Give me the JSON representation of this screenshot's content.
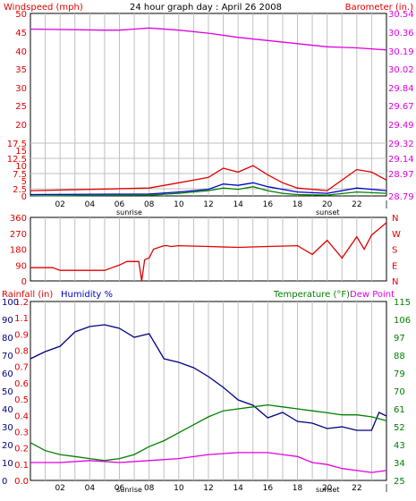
{
  "colors": {
    "red": "#e00000",
    "blue": "#0000c8",
    "green": "#008000",
    "magenta": "#e000e0",
    "navy": "#000080",
    "darkgreen": "#008000",
    "grid": "#c0c0c0",
    "frame": "#000000"
  },
  "chart_data": [
    {
      "type": "line",
      "title": "24 hour graph day : April 26 2008",
      "left_label": "Windspeed (mph)",
      "right_label": "Barometer (in.)",
      "x_ticks": [
        "02",
        "04",
        "06",
        "08",
        "10",
        "12",
        "14",
        "16",
        "18",
        "20",
        "22",
        "|"
      ],
      "x_annotations": [
        "sunrise",
        "sunset"
      ],
      "y_left_ticks": [
        "50",
        "45",
        "40",
        "35",
        "30",
        "25",
        "20",
        "17.5",
        "15",
        "12.5",
        "10",
        "7.5",
        "5",
        "2.5",
        "0"
      ],
      "y_right_ticks": [
        "30.54",
        "30.36",
        "30.19",
        "30.02",
        "29.84",
        "29.67",
        "29.49",
        "29.32",
        "29.14",
        "28.97",
        "28.79"
      ],
      "series": [
        {
          "name": "Barometer",
          "color": "magenta",
          "x": [
            0,
            5,
            6,
            7,
            8,
            10,
            12,
            14,
            16,
            18,
            20,
            22,
            24
          ],
          "y": [
            30.39,
            30.38,
            30.38,
            30.39,
            30.4,
            30.38,
            30.35,
            30.31,
            30.28,
            30.25,
            30.22,
            30.21,
            30.19
          ]
        },
        {
          "name": "Windspeed average",
          "color": "blue",
          "x": [
            0,
            8,
            10,
            12,
            13,
            14,
            15,
            16,
            17,
            18,
            20,
            22,
            23,
            24
          ],
          "y": [
            0.5,
            0.7,
            1.5,
            2.5,
            4.5,
            4.0,
            5.0,
            3.5,
            2.5,
            1.5,
            1.0,
            3.0,
            2.5,
            2.0
          ]
        },
        {
          "name": "Windspeed gust",
          "color": "red",
          "x": [
            0,
            8,
            10,
            12,
            13,
            14,
            15,
            16,
            17,
            18,
            20,
            22,
            23,
            24
          ],
          "y": [
            2.0,
            3.0,
            5.0,
            7.0,
            10.5,
            9.0,
            11.5,
            8.0,
            5.0,
            3.0,
            2.0,
            10.0,
            9.0,
            6.0
          ]
        },
        {
          "name": "Windspeed",
          "color": "green",
          "x": [
            0,
            8,
            10,
            12,
            13,
            14,
            15,
            16,
            17,
            18,
            20,
            22,
            24
          ],
          "y": [
            0.0,
            0.3,
            1.0,
            2.0,
            3.0,
            2.5,
            3.5,
            2.0,
            1.0,
            0.5,
            0.3,
            1.5,
            1.0
          ]
        }
      ]
    },
    {
      "type": "line",
      "y_left_ticks": [
        "360",
        "270",
        "180",
        "90",
        "0"
      ],
      "y_right_ticks": [
        "N",
        "W",
        "S",
        "E",
        "N"
      ],
      "series": [
        {
          "name": "Wind direction",
          "color": "red",
          "x": [
            0,
            1.5,
            2,
            5,
            5.5,
            6,
            6.5,
            7.3,
            7.5,
            7.7,
            8,
            8.3,
            9,
            9.2,
            9.5,
            10,
            12,
            14,
            16,
            18,
            19,
            20,
            21,
            22,
            22.5,
            23,
            24
          ],
          "y": [
            75,
            75,
            60,
            60,
            75,
            90,
            110,
            110,
            0,
            120,
            130,
            180,
            200,
            200,
            195,
            200,
            195,
            190,
            195,
            200,
            150,
            230,
            130,
            250,
            180,
            260,
            330
          ]
        }
      ]
    },
    {
      "type": "line",
      "left_label_1": "Rainfall (in)",
      "left_label_2": "Humidity %",
      "right_label_1": "Temperature (°F)",
      "right_label_2": "Dew Point",
      "x_ticks": [
        "02",
        "04",
        "06",
        "08",
        "10",
        "12",
        "14",
        "16",
        "18",
        "20",
        "22",
        "|"
      ],
      "x_annotations": [
        "sunrise",
        "sunset"
      ],
      "y_left_ticks_1": [
        "100",
        "90",
        "80",
        "70",
        "60",
        "50",
        "40",
        "30",
        "20",
        "10",
        "0"
      ],
      "y_left_ticks_2": [
        "1.2",
        "1.1",
        "0.9",
        "0.8",
        "0.7",
        "0.6",
        "0.5",
        "0.4",
        "0.3",
        "0.2",
        "0.1",
        "0.0"
      ],
      "y_right_ticks": [
        "115",
        "106",
        "97",
        "88",
        "79",
        "70",
        "61",
        "52",
        "43",
        "34",
        "25"
      ],
      "series": [
        {
          "name": "Humidity",
          "color": "navy",
          "x": [
            0,
            1,
            2,
            3,
            4,
            5,
            6,
            7,
            8,
            9,
            10,
            11,
            12,
            13,
            14,
            15,
            16,
            17,
            18,
            19,
            20,
            21,
            22,
            23,
            23.5,
            24
          ],
          "y": [
            68,
            72,
            75,
            83,
            86,
            87,
            85,
            80,
            82,
            68,
            66,
            63,
            58,
            52,
            45,
            42,
            35,
            38,
            33,
            32,
            29,
            30,
            28,
            28,
            38,
            36
          ]
        },
        {
          "name": "Temperature",
          "color": "green",
          "x": [
            0,
            1,
            2,
            3,
            4,
            5,
            6,
            7,
            8,
            9,
            10,
            11,
            12,
            13,
            14,
            15,
            16,
            17,
            18,
            19,
            20,
            21,
            22,
            23,
            24
          ],
          "y": [
            44,
            40,
            38,
            37,
            36,
            35,
            36,
            38,
            42,
            45,
            49,
            53,
            57,
            60,
            61,
            62,
            63,
            62,
            61,
            60,
            59,
            58,
            58,
            57,
            55
          ]
        },
        {
          "name": "Dew Point",
          "color": "magenta",
          "x": [
            0,
            2,
            4,
            6,
            8,
            10,
            12,
            14,
            16,
            17,
            18,
            19,
            20,
            21,
            22,
            23,
            24
          ],
          "y": [
            34,
            34,
            35,
            34,
            35,
            36,
            38,
            39,
            39,
            38,
            37,
            34,
            33,
            31,
            30,
            29,
            30
          ]
        }
      ]
    }
  ]
}
